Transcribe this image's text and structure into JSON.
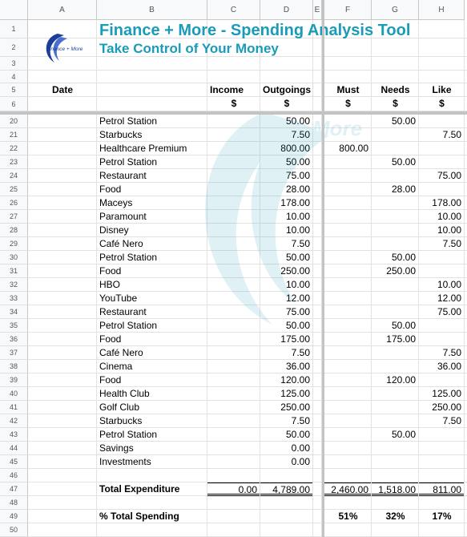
{
  "columns": [
    "A",
    "B",
    "C",
    "D",
    "E",
    "F",
    "G",
    "H"
  ],
  "header": {
    "title": "Finance + More - Spending Analysis Tool",
    "subtitle": "Take Control of Your Money",
    "logo_text": "Finance + More",
    "watermark_text": "More"
  },
  "col_labels": {
    "date": "Date",
    "income": "Income",
    "outgoings": "Outgoings",
    "must": "Must",
    "needs": "Needs",
    "like": "Like",
    "currency": "$"
  },
  "header_rows": [
    "1",
    "2",
    "3",
    "4",
    "5",
    "6"
  ],
  "rows": [
    {
      "row": "20",
      "desc": "Petrol Station",
      "out": "50.00",
      "must": "",
      "needs": "50.00",
      "like": ""
    },
    {
      "row": "21",
      "desc": "Starbucks",
      "out": "7.50",
      "must": "",
      "needs": "",
      "like": "7.50"
    },
    {
      "row": "22",
      "desc": "Healthcare Premium",
      "out": "800.00",
      "must": "800.00",
      "needs": "",
      "like": ""
    },
    {
      "row": "23",
      "desc": "Petrol Station",
      "out": "50.00",
      "must": "",
      "needs": "50.00",
      "like": ""
    },
    {
      "row": "24",
      "desc": "Restaurant",
      "out": "75.00",
      "must": "",
      "needs": "",
      "like": "75.00"
    },
    {
      "row": "25",
      "desc": "Food",
      "out": "28.00",
      "must": "",
      "needs": "28.00",
      "like": ""
    },
    {
      "row": "26",
      "desc": "Maceys",
      "out": "178.00",
      "must": "",
      "needs": "",
      "like": "178.00"
    },
    {
      "row": "27",
      "desc": "Paramount",
      "out": "10.00",
      "must": "",
      "needs": "",
      "like": "10.00"
    },
    {
      "row": "28",
      "desc": "Disney",
      "out": "10.00",
      "must": "",
      "needs": "",
      "like": "10.00"
    },
    {
      "row": "29",
      "desc": "Café Nero",
      "out": "7.50",
      "must": "",
      "needs": "",
      "like": "7.50"
    },
    {
      "row": "30",
      "desc": "Petrol Station",
      "out": "50.00",
      "must": "",
      "needs": "50.00",
      "like": ""
    },
    {
      "row": "31",
      "desc": "Food",
      "out": "250.00",
      "must": "",
      "needs": "250.00",
      "like": ""
    },
    {
      "row": "32",
      "desc": "HBO",
      "out": "10.00",
      "must": "",
      "needs": "",
      "like": "10.00"
    },
    {
      "row": "33",
      "desc": "YouTube",
      "out": "12.00",
      "must": "",
      "needs": "",
      "like": "12.00"
    },
    {
      "row": "34",
      "desc": "Restaurant",
      "out": "75.00",
      "must": "",
      "needs": "",
      "like": "75.00"
    },
    {
      "row": "35",
      "desc": "Petrol Station",
      "out": "50.00",
      "must": "",
      "needs": "50.00",
      "like": ""
    },
    {
      "row": "36",
      "desc": "Food",
      "out": "175.00",
      "must": "",
      "needs": "175.00",
      "like": ""
    },
    {
      "row": "37",
      "desc": "Café Nero",
      "out": "7.50",
      "must": "",
      "needs": "",
      "like": "7.50"
    },
    {
      "row": "38",
      "desc": "Cinema",
      "out": "36.00",
      "must": "",
      "needs": "",
      "like": "36.00"
    },
    {
      "row": "39",
      "desc": "Food",
      "out": "120.00",
      "must": "",
      "needs": "120.00",
      "like": ""
    },
    {
      "row": "40",
      "desc": "Health Club",
      "out": "125.00",
      "must": "",
      "needs": "",
      "like": "125.00"
    },
    {
      "row": "41",
      "desc": "Golf Club",
      "out": "250.00",
      "must": "",
      "needs": "",
      "like": "250.00"
    },
    {
      "row": "42",
      "desc": "Starbucks",
      "out": "7.50",
      "must": "",
      "needs": "",
      "like": "7.50"
    },
    {
      "row": "43",
      "desc": "Petrol Station",
      "out": "50.00",
      "must": "",
      "needs": "50.00",
      "like": ""
    },
    {
      "row": "44",
      "desc": "Savings",
      "out": "0.00",
      "must": "",
      "needs": "",
      "like": ""
    },
    {
      "row": "45",
      "desc": "Investments",
      "out": "0.00",
      "must": "",
      "needs": "",
      "like": ""
    }
  ],
  "blank_rows": [
    "46",
    "48",
    "50"
  ],
  "totals": {
    "row": "47",
    "label": "Total Expenditure",
    "income": "0.00",
    "out": "4,789.00",
    "must": "2,460.00",
    "needs": "1,518.00",
    "like": "811.00"
  },
  "percent": {
    "row": "49",
    "label": "% Total Spending",
    "must": "51%",
    "needs": "32%",
    "like": "17%"
  },
  "colors": {
    "title": "#1a9bb8",
    "grid": "#e2e2e2",
    "header_bg": "#f8f9fa",
    "freeze": "#c3c3c3"
  }
}
